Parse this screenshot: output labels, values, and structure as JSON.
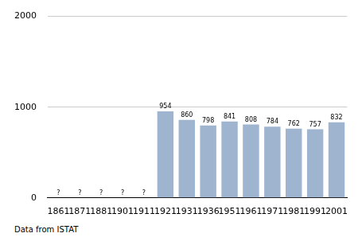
{
  "chart_data": {
    "type": "bar",
    "categories": [
      "1861",
      "1871",
      "1881",
      "1901",
      "1911",
      "1921",
      "1931",
      "1936",
      "1951",
      "1961",
      "1971",
      "1981",
      "1991",
      "2001"
    ],
    "values": [
      null,
      null,
      null,
      null,
      null,
      954,
      860,
      798,
      841,
      808,
      784,
      762,
      757,
      832
    ],
    "value_labels": [
      "?",
      "?",
      "?",
      "?",
      "?",
      "954",
      "860",
      "798",
      "841",
      "808",
      "784",
      "762",
      "757",
      "832"
    ],
    "data_labels": true,
    "color": "#9fb4cf",
    "ylim": [
      0,
      2000
    ],
    "yticks": [
      0,
      1000,
      2000
    ],
    "grid": true,
    "caption": "Data from ISTAT"
  }
}
